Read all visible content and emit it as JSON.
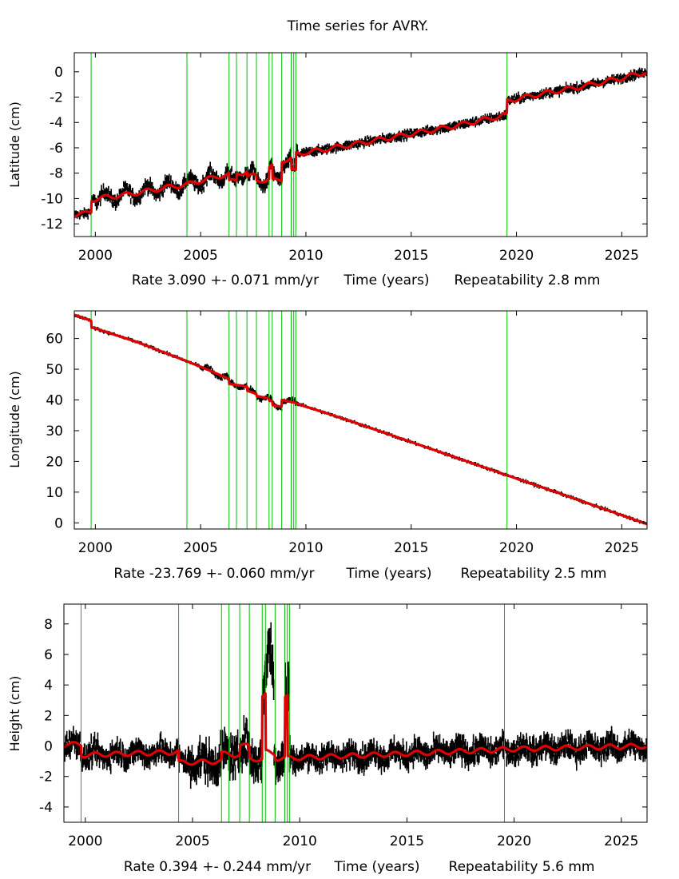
{
  "title": "Time series for AVRY.",
  "colors": {
    "observations": "#000000",
    "model": "#e00000",
    "events": "#00c000",
    "frame": "#000000"
  },
  "chart_data": [
    {
      "type": "scatter",
      "component": "latitude",
      "ylabel": "Latitude (cm)",
      "xlabel": "Time (years)",
      "xlim": [
        1999.0,
        2026.2
      ],
      "ylim": [
        -13.0,
        1.5
      ],
      "xticks": [
        2000,
        2005,
        2010,
        2015,
        2020,
        2025
      ],
      "yticks": [
        0,
        -2,
        -4,
        -6,
        -8,
        -10,
        -12
      ],
      "rate_label": "Rate 3.090 +- 0.071 mm/yr",
      "repeatability_label": "Repeatability 2.8 mm",
      "rate_mm_yr": 3.09,
      "rate_sigma_mm_yr": 0.071,
      "repeatability_mm": 2.8,
      "event_epochs": [
        1999.8,
        2004.35,
        2006.35,
        2006.7,
        2007.2,
        2007.65,
        2008.25,
        2008.4,
        2008.85,
        2009.3,
        2009.42,
        2009.52,
        2019.55
      ],
      "series": [
        {
          "name": "model",
          "x": [
            1999.0,
            1999.5,
            1999.8,
            1999.81,
            2000.5,
            2001.5,
            2002.5,
            2003.5,
            2004.35,
            2005.0,
            2006.0,
            2006.35,
            2006.36,
            2006.7,
            2006.71,
            2007.2,
            2007.21,
            2007.65,
            2007.66,
            2008.25,
            2008.26,
            2008.4,
            2008.41,
            2008.85,
            2008.86,
            2009.3,
            2009.31,
            2009.52,
            2009.53,
            2011.0,
            2013.0,
            2015.0,
            2017.0,
            2019.55,
            2019.56,
            2021.0,
            2023.0,
            2025.0,
            2026.2
          ],
          "values": [
            -11.3,
            -11.2,
            -11.0,
            -10.1,
            -9.9,
            -9.7,
            -9.4,
            -9.1,
            -8.9,
            -8.6,
            -8.2,
            -8.1,
            -8.7,
            -8.6,
            -8.0,
            -7.9,
            -8.3,
            -8.2,
            -8.6,
            -8.5,
            -7.6,
            -7.5,
            -8.6,
            -8.5,
            -7.0,
            -6.9,
            -7.8,
            -7.9,
            -6.5,
            -6.1,
            -5.5,
            -4.9,
            -4.3,
            -3.4,
            -2.3,
            -1.8,
            -1.2,
            -0.5,
            0.0
          ]
        }
      ]
    },
    {
      "type": "scatter",
      "component": "longitude",
      "ylabel": "Longitude (cm)",
      "xlabel": "Time (years)",
      "xlim": [
        1999.0,
        2026.2
      ],
      "ylim": [
        -2.0,
        69.0
      ],
      "xticks": [
        2000,
        2005,
        2010,
        2015,
        2020,
        2025
      ],
      "yticks": [
        60,
        50,
        40,
        30,
        20,
        10,
        0
      ],
      "rate_label": "Rate -23.769 +- 0.060 mm/yr",
      "repeatability_label": "Repeatability 2.5 mm",
      "rate_mm_yr": -23.769,
      "rate_sigma_mm_yr": 0.06,
      "repeatability_mm": 2.5,
      "event_epochs": [
        1999.8,
        2004.35,
        2006.35,
        2006.7,
        2007.2,
        2007.65,
        2008.25,
        2008.4,
        2008.85,
        2009.3,
        2009.42,
        2009.52,
        2019.55
      ],
      "series": [
        {
          "name": "model",
          "x": [
            1999.0,
            1999.8,
            1999.81,
            2002.0,
            2004.35,
            2005.0,
            2006.0,
            2006.35,
            2006.36,
            2007.0,
            2007.2,
            2007.21,
            2007.65,
            2007.66,
            2008.25,
            2008.26,
            2008.4,
            2008.41,
            2008.85,
            2008.86,
            2009.52,
            2009.53,
            2012.0,
            2015.0,
            2019.55,
            2022.0,
            2026.2
          ],
          "values": [
            67.7,
            65.8,
            63.7,
            58.8,
            52.6,
            50.8,
            47.9,
            46.8,
            45.2,
            44.6,
            44.3,
            43.0,
            42.0,
            41.3,
            40.5,
            39.8,
            39.6,
            38.3,
            37.8,
            40.0,
            39.0,
            38.9,
            33.4,
            26.3,
            15.5,
            9.7,
            -0.4
          ]
        }
      ]
    },
    {
      "type": "scatter",
      "component": "height",
      "ylabel": "Height (cm)",
      "xlabel": "Time (years)",
      "xlim": [
        1999.0,
        2026.2
      ],
      "ylim": [
        -5.0,
        9.3
      ],
      "xticks": [
        2000,
        2005,
        2010,
        2015,
        2020,
        2025
      ],
      "yticks": [
        8,
        6,
        4,
        2,
        0,
        -2,
        -4
      ],
      "rate_label": "Rate 0.394 +- 0.244 mm/yr",
      "repeatability_label": "Repeatability 5.6 mm",
      "rate_mm_yr": 0.394,
      "rate_sigma_mm_yr": 0.244,
      "repeatability_mm": 5.6,
      "event_epochs": [
        1999.8,
        2004.35,
        2006.35,
        2006.7,
        2007.2,
        2007.65,
        2008.25,
        2008.4,
        2008.85,
        2009.3,
        2009.42,
        2009.52,
        2019.55
      ],
      "series": [
        {
          "name": "model",
          "x": [
            1999.0,
            1999.8,
            1999.81,
            2004.35,
            2004.36,
            2006.35,
            2006.36,
            2007.2,
            2007.21,
            2007.65,
            2007.66,
            2008.25,
            2008.26,
            2008.4,
            2008.41,
            2008.85,
            2008.86,
            2009.3,
            2009.31,
            2009.42,
            2009.43,
            2009.52,
            2009.53,
            2015.0,
            2020.0,
            2026.2
          ],
          "values": [
            0.1,
            0.1,
            -0.6,
            -0.4,
            -1.1,
            -1.0,
            -0.5,
            -0.6,
            0.0,
            0.0,
            -0.8,
            -0.9,
            3.2,
            3.3,
            -0.4,
            -0.5,
            -0.8,
            -0.8,
            3.1,
            3.2,
            -0.8,
            -0.8,
            -0.8,
            -0.5,
            -0.2,
            0.0
          ]
        }
      ]
    }
  ]
}
